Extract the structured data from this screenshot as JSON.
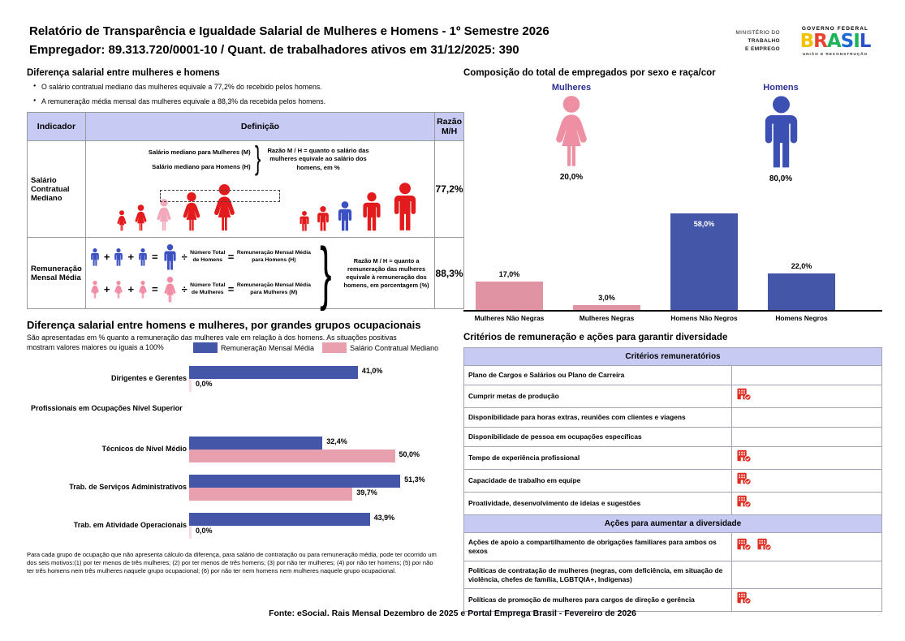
{
  "header": {
    "title_line1": "Relatório de Transparência e Igualdade Salarial de Mulheres e Homens - 1º Semestre 2026",
    "title_line2": "Empregador: 89.313.720/0001-10 / Quant. de trabalhadores ativos em 31/12/2025: 390",
    "ministry_lines": [
      "MINISTÉRIO DO",
      "TRABALHO",
      "E EMPREGO"
    ],
    "gov_logo": {
      "top": "GOVERNO FEDERAL",
      "brand": "BRASIL",
      "bottom": "UNIÃO E RECONSTRUÇÃO",
      "letter_colors": [
        "#f2c100",
        "#e8442d",
        "#1cb35b",
        "#1c69d4",
        "#1cb35b",
        "#2b50c8"
      ]
    }
  },
  "salary_diff": {
    "title": "Diferença salarial entre mulheres e homens",
    "bullets": [
      "O salário contratual mediano das mulheres equivale a 77,2% do recebido pelos homens.",
      "A remuneração média mensal das mulheres equivale a 88,3% da recebida pelos homens."
    ],
    "table": {
      "headers": [
        "Indicador",
        "Definição",
        "Razão M/H"
      ],
      "row1": {
        "indicator": "Salário Contratual Mediano",
        "line_women": "Salário mediano para Mulheres (M)",
        "line_men": "Salário mediano para Homens (H)",
        "explanation": "Razão M / H = quanto o salário das mulheres equivale ao salário dos homens, em %",
        "ratio": "77,2%"
      },
      "row2": {
        "indicator": "Remuneração Mensal Média",
        "men_divisor": "Número Total de Homens",
        "men_result": "Remuneração Mensal Média para Homens (H)",
        "women_divisor": "Número Total de Mulheres",
        "women_result": "Remuneração Mensal Média para Mulheres (M)",
        "explanation": "Razão M / H = quanto a remuneração das mulheres equivale à remuneração dos homens, em porcentagem (%)",
        "ratio": "88,3%",
        "operators": {
          "plus": "+",
          "equals": "=",
          "divide": "÷"
        }
      }
    }
  },
  "composition": {
    "title": "Composição do total de empregados por sexo e raça/cor",
    "sex_groups": [
      {
        "label": "Mulheres",
        "pct": "20,0%",
        "icon": "woman-icon",
        "color": "#ef8fa3"
      },
      {
        "label": "Homens",
        "pct": "80,0%",
        "icon": "man-icon",
        "color": "#3c50b4"
      }
    ],
    "chart_data": {
      "type": "bar",
      "categories": [
        "Mulheres Não Negras",
        "Mulheres Negras",
        "Homens Não Negros",
        "Homens Negros"
      ],
      "values": [
        17.0,
        3.0,
        58.0,
        22.0
      ],
      "value_labels": [
        "17,0%",
        "3,0%",
        "58,0%",
        "22,0%"
      ],
      "bar_colors": [
        "#df93a3",
        "#df93a3",
        "#4456a8",
        "#4456a8"
      ],
      "ylim": [
        0,
        60
      ],
      "grid": false,
      "value_label_inside_threshold": 50
    }
  },
  "occupational": {
    "title": "Diferença salarial entre homens e mulheres, por grandes grupos ocupacionais",
    "subtitle": "São apresentadas em % quanto a remuneração das mulheres vale em relação à dos homens. As situações positivas mostram valores maiores ou iguais a 100%",
    "legend": [
      {
        "label": "Remuneração Mensal Média",
        "color": "#4456a8"
      },
      {
        "label": "Salário Contratual Mediano",
        "color": "#e8a0ae"
      }
    ],
    "chart_data": {
      "type": "bar",
      "orientation": "horizontal",
      "series_names": [
        "Remuneração Mensal Média",
        "Salário Contratual Mediano"
      ],
      "series_colors": [
        "#4456a8",
        "#e8a0ae"
      ],
      "rows": [
        {
          "category": "Dirigentes e Gerentes",
          "values": [
            41.0,
            0.0
          ],
          "labels": [
            "41,0%",
            "0,0%"
          ]
        },
        {
          "heading": "Profissionais em Ocupações Nível Superior"
        },
        {
          "category": "Técnicos de Nível Médio",
          "values": [
            32.4,
            50.0
          ],
          "labels": [
            "32,4%",
            "50,0%"
          ]
        },
        {
          "category": "Trab. de Serviços Administrativos",
          "values": [
            51.3,
            39.7
          ],
          "labels": [
            "51,3%",
            "39,7%"
          ]
        },
        {
          "category": "Trab. em Atividade Operacionais",
          "values": [
            43.9,
            0.0
          ],
          "labels": [
            "43,9%",
            "0,0%"
          ]
        }
      ],
      "xlim": [
        0,
        55
      ]
    },
    "footnote": "Para cada grupo de ocupação que não apresenta cálculo da diferença, para salário de contratação ou para remuneração média, pode ter ocorrido um dos seis motivos:(1) por ter menos de três mulheres; (2) por ter menos de três homens; (3) por não ter mulheres; (4) por não ter homens; (5) por não ter três homens nem três mulheres naquele grupo ocupacional; (6) por não ter nem homens nem mulheres naquele grupo ocupacional."
  },
  "criteria": {
    "title": "Critérios de remuneração e ações para garantir diversidade",
    "icon_name": "building-check-icon",
    "icon_color": "#e02b20",
    "sections": [
      {
        "header": "Critérios remuneratórios",
        "rows": [
          {
            "label": "Plano de Cargos e Salários ou Plano de Carreira",
            "icons": 0
          },
          {
            "label": "Cumprir metas de produção",
            "icons": 1
          },
          {
            "label": "Disponibilidade para horas extras, reuniões com clientes e viagens",
            "icons": 0
          },
          {
            "label": "Disponibilidade de pessoa em ocupações específicas",
            "icons": 0
          },
          {
            "label": "Tempo de experiência profissional",
            "icons": 1
          },
          {
            "label": "Capacidade de trabalho em equipe",
            "icons": 1
          },
          {
            "label": "Proatividade, desenvolvimento de ideias e sugestões",
            "icons": 1
          }
        ]
      },
      {
        "header": "Ações para aumentar a diversidade",
        "rows": [
          {
            "label": "Ações de apoio a compartilhamento de obrigações familiares para ambos os sexos",
            "icons": 2
          },
          {
            "label": "Políticas de contratação de mulheres (negras, com deficiência, em situação de violência, chefes de família, LGBTQIA+, Indígenas)",
            "icons": 0
          },
          {
            "label": "Políticas de promoção de mulheres para cargos de direção e gerência",
            "icons": 1
          }
        ]
      }
    ]
  },
  "footer": "Fonte: eSocial. Rais Mensal Dezembro de 2025 e Portal Emprega Brasil - Fevereiro de 2026",
  "colors": {
    "accent_blue": "#4456a8",
    "accent_pink": "#df93a3",
    "lavender_header": "#c7cbf3",
    "navy_label": "#2d2f92",
    "figure_red": "#e31b1c",
    "figure_pink": "#f2a9bb",
    "figure_blue": "#3c50c1"
  }
}
